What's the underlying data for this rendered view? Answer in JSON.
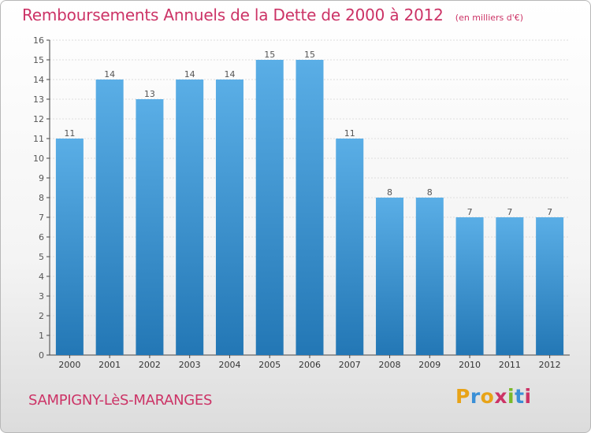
{
  "header": {
    "title": "Remboursements Annuels de la Dette de 2000 à 2012",
    "unit": "(en milliers d'€)"
  },
  "footer": {
    "commune": "SAMPIGNY-LèS-MARANGES",
    "brand": "Proxiti",
    "brand_colors": [
      "#e8a317",
      "#3a8fd6",
      "#e8a317",
      "#cc3366",
      "#7ab929",
      "#3a8fd6",
      "#cc3366"
    ]
  },
  "colors": {
    "title": "#cc3366",
    "bar_light": "#5aaee6",
    "bar_dark": "#2377b5"
  },
  "chart_data": {
    "type": "bar",
    "categories": [
      "2000",
      "2001",
      "2002",
      "2003",
      "2004",
      "2005",
      "2006",
      "2007",
      "2008",
      "2009",
      "2010",
      "2011",
      "2012"
    ],
    "values": [
      11,
      14,
      13,
      14,
      14,
      15,
      15,
      11,
      8,
      8,
      7,
      7,
      7
    ],
    "ylim": [
      0,
      16
    ],
    "yticks": [
      "0",
      "1",
      "2",
      "3",
      "4",
      "5",
      "6",
      "7",
      "8",
      "9",
      "10",
      "11",
      "12",
      "13",
      "14",
      "15",
      "16"
    ],
    "grid": true,
    "data_labels": true
  }
}
